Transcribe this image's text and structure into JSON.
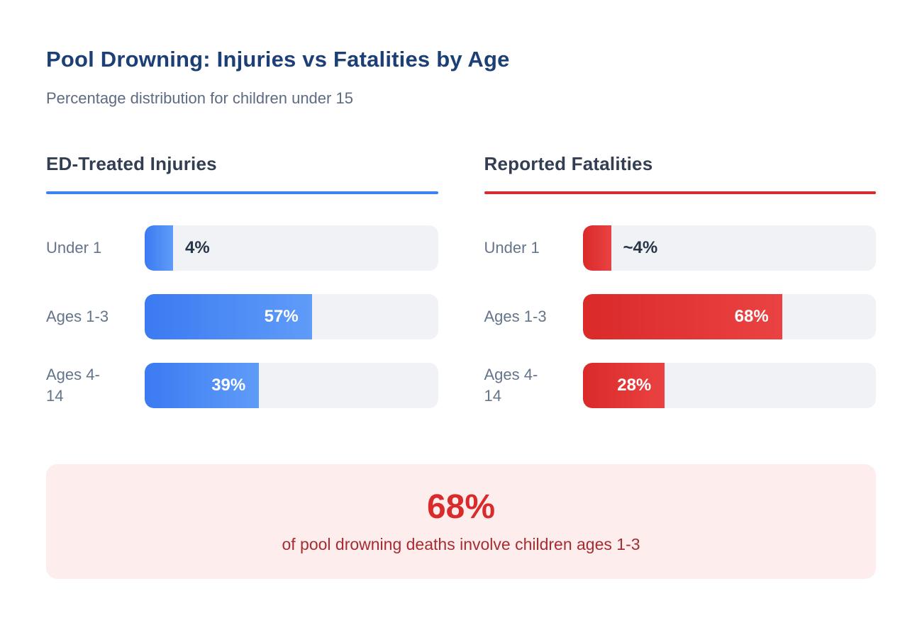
{
  "title": "Pool Drowning: Injuries vs Fatalities by Age",
  "subtitle": "Percentage distribution for children under 15",
  "colors": {
    "title_navy": "#1c3f76",
    "subtitle_gray": "#5d6b82",
    "heading_slate": "#333e52",
    "label_gray": "#64748b",
    "value_dark": "#283447",
    "track_bg": "#f0f2f6",
    "injury_blue": "#3b82f6",
    "injury_blue_light": "#5f9cf8",
    "fatality_red": "#d92b2b",
    "fatality_red_light": "#ea4242",
    "callout_bg": "#fdeded",
    "callout_text": "#a72c30"
  },
  "chart_data": [
    {
      "type": "bar",
      "orientation": "horizontal",
      "title": "ED-Treated Injuries",
      "categories": [
        "Under 1",
        "Ages 1-3",
        "Ages 4-14"
      ],
      "values": [
        4,
        57,
        39
      ],
      "labels": [
        "4%",
        "57%",
        "39%"
      ],
      "xlim": [
        0,
        100
      ],
      "bar_color": "#3b82f6",
      "grid": false,
      "legend": false
    },
    {
      "type": "bar",
      "orientation": "horizontal",
      "title": "Reported Fatalities",
      "categories": [
        "Under 1",
        "Ages 1-3",
        "Ages 4-14"
      ],
      "values": [
        4,
        68,
        28
      ],
      "labels": [
        "~4%",
        "68%",
        "28%"
      ],
      "xlim": [
        0,
        100
      ],
      "bar_color": "#d92b2b",
      "grid": false,
      "legend": false
    }
  ],
  "callout": {
    "value": "68%",
    "description": "of pool drowning deaths involve children ages 1-3"
  }
}
